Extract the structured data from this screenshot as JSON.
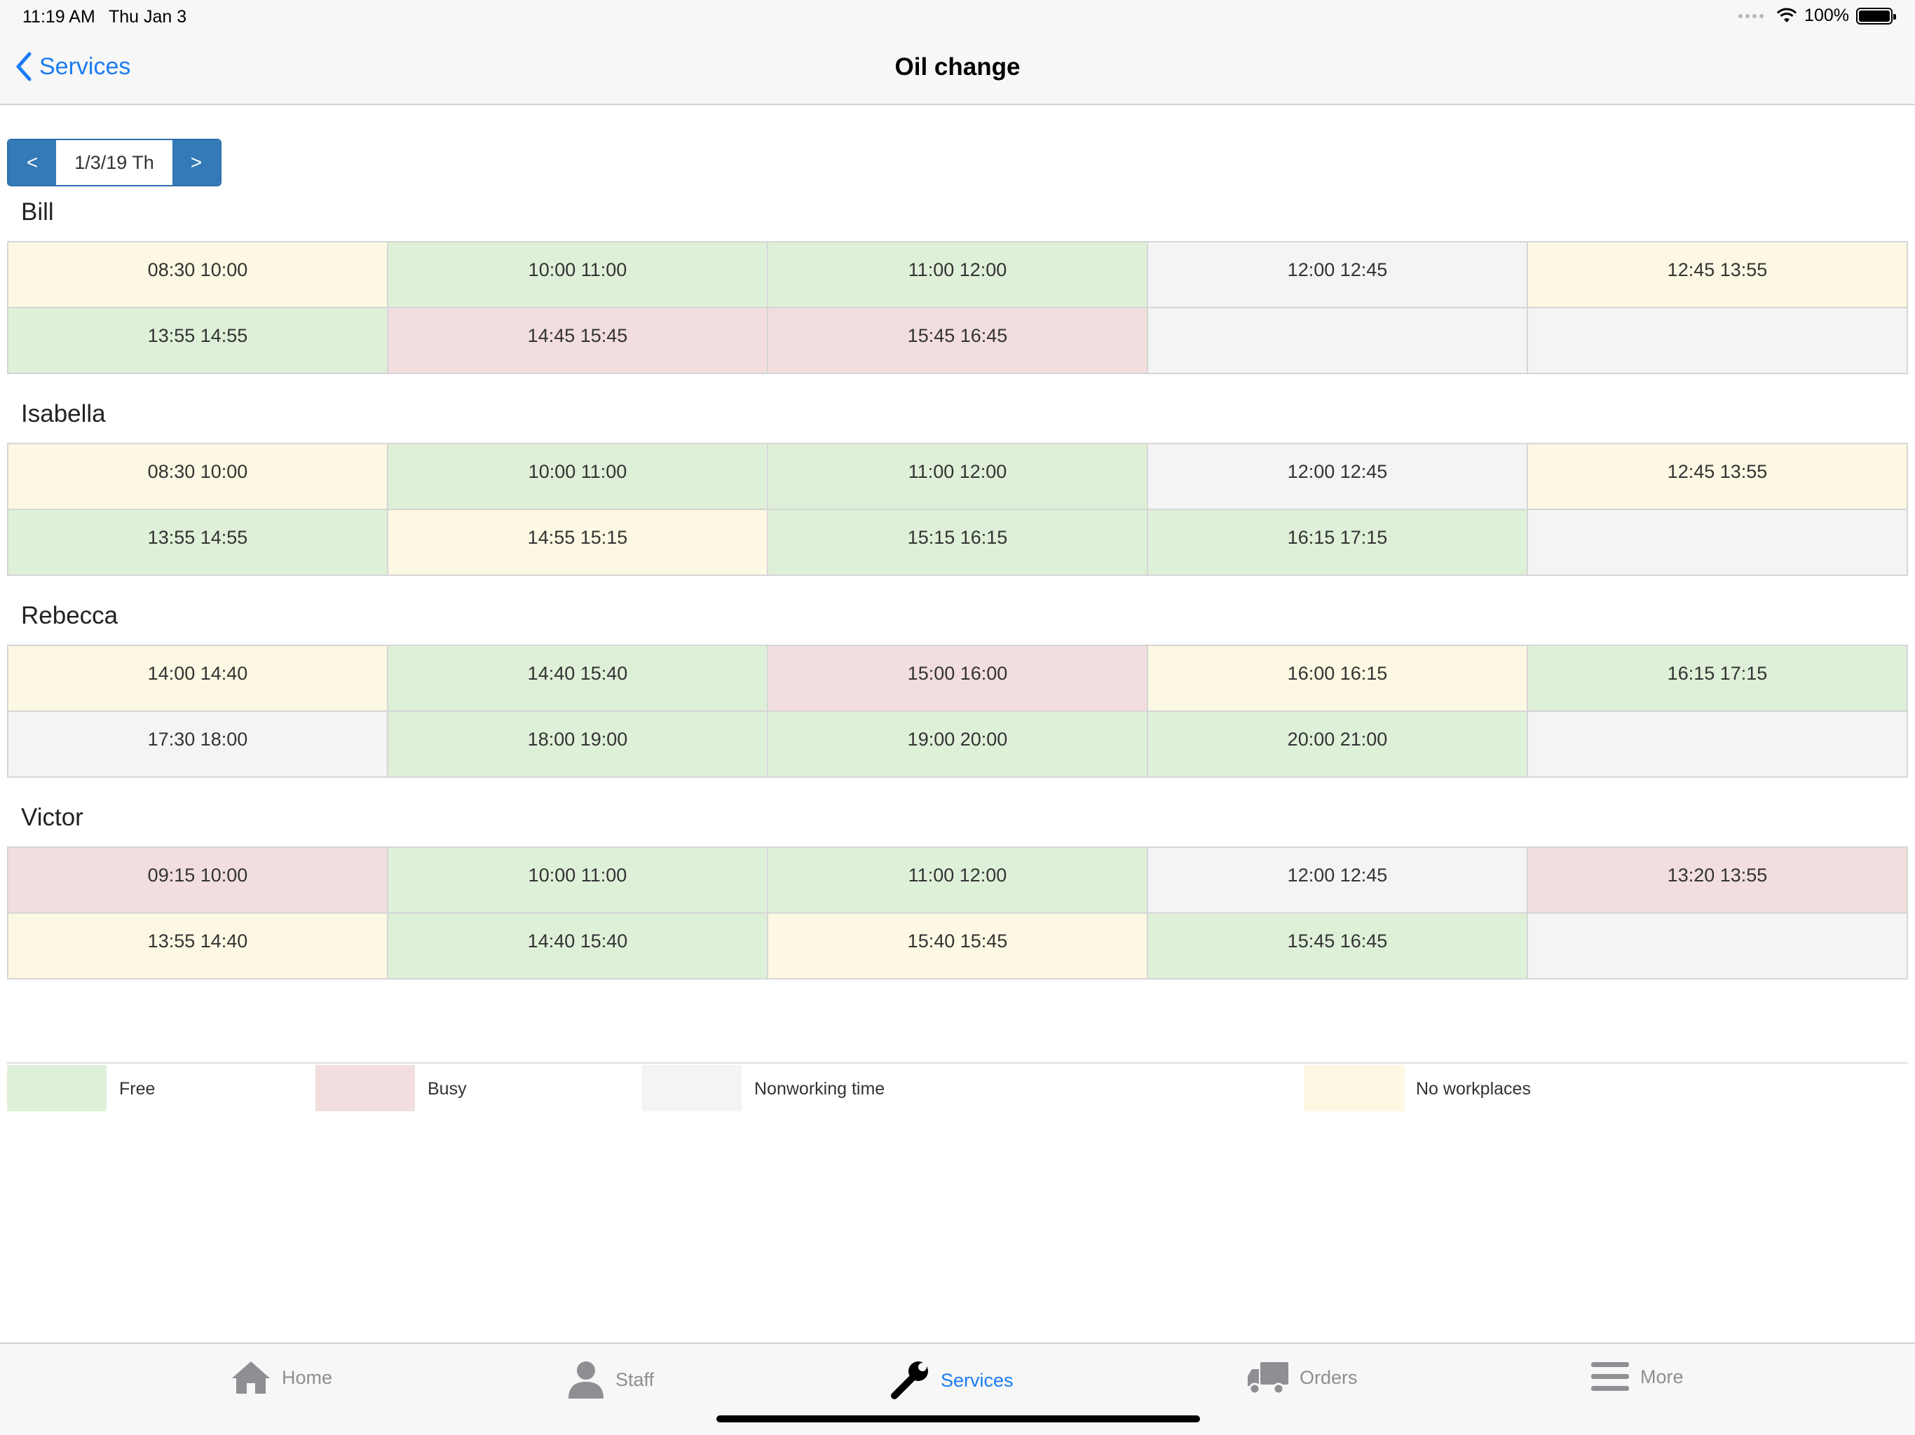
{
  "status_bar": {
    "time": "11:19 AM",
    "date": "Thu Jan 3",
    "battery": "100%"
  },
  "nav": {
    "back_label": "Services",
    "title": "Oil change"
  },
  "date_picker": {
    "prev": "<",
    "value": "1/3/19 Th",
    "next": ">"
  },
  "staff": [
    {
      "name": "Bill",
      "slots": [
        {
          "label": "08:30 10:00",
          "status": "no-workplaces"
        },
        {
          "label": "10:00 11:00",
          "status": "free"
        },
        {
          "label": "11:00 12:00",
          "status": "free"
        },
        {
          "label": "12:00 12:45",
          "status": "nonworking"
        },
        {
          "label": "12:45 13:55",
          "status": "no-workplaces"
        },
        {
          "label": "13:55 14:55",
          "status": "free"
        },
        {
          "label": "14:45 15:45",
          "status": "busy"
        },
        {
          "label": "15:45 16:45",
          "status": "busy"
        },
        {
          "label": "",
          "status": "nonworking"
        },
        {
          "label": "",
          "status": "nonworking"
        }
      ]
    },
    {
      "name": "Isabella",
      "slots": [
        {
          "label": "08:30 10:00",
          "status": "no-workplaces"
        },
        {
          "label": "10:00 11:00",
          "status": "free"
        },
        {
          "label": "11:00 12:00",
          "status": "free"
        },
        {
          "label": "12:00 12:45",
          "status": "nonworking"
        },
        {
          "label": "12:45 13:55",
          "status": "no-workplaces"
        },
        {
          "label": "13:55 14:55",
          "status": "free"
        },
        {
          "label": "14:55 15:15",
          "status": "no-workplaces"
        },
        {
          "label": "15:15 16:15",
          "status": "free"
        },
        {
          "label": "16:15 17:15",
          "status": "free"
        },
        {
          "label": "",
          "status": "nonworking"
        }
      ]
    },
    {
      "name": "Rebecca",
      "slots": [
        {
          "label": "14:00 14:40",
          "status": "no-workplaces"
        },
        {
          "label": "14:40 15:40",
          "status": "free"
        },
        {
          "label": "15:00 16:00",
          "status": "busy"
        },
        {
          "label": "16:00 16:15",
          "status": "no-workplaces"
        },
        {
          "label": "16:15 17:15",
          "status": "free"
        },
        {
          "label": "17:30 18:00",
          "status": "nonworking"
        },
        {
          "label": "18:00 19:00",
          "status": "free"
        },
        {
          "label": "19:00 20:00",
          "status": "free"
        },
        {
          "label": "20:00 21:00",
          "status": "free"
        },
        {
          "label": "",
          "status": "nonworking"
        }
      ]
    },
    {
      "name": "Victor",
      "slots": [
        {
          "label": "09:15 10:00",
          "status": "busy"
        },
        {
          "label": "10:00 11:00",
          "status": "free"
        },
        {
          "label": "11:00 12:00",
          "status": "free"
        },
        {
          "label": "12:00 12:45",
          "status": "nonworking"
        },
        {
          "label": "13:20 13:55",
          "status": "busy"
        },
        {
          "label": "13:55 14:40",
          "status": "no-workplaces"
        },
        {
          "label": "14:40 15:40",
          "status": "free"
        },
        {
          "label": "15:40 15:45",
          "status": "no-workplaces"
        },
        {
          "label": "15:45 16:45",
          "status": "free"
        },
        {
          "label": "",
          "status": "nonworking"
        }
      ]
    }
  ],
  "legend": {
    "free": "Free",
    "busy": "Busy",
    "nonworking": "Nonworking time",
    "no_workplaces": "No workplaces"
  },
  "status_colors": {
    "free": "#dff0d8",
    "busy": "#f2dede",
    "nonworking": "#f4f4f4",
    "no_workplaces": "#fcf8e3"
  },
  "tabs": [
    {
      "label": "Home",
      "icon": "home-icon",
      "active": false
    },
    {
      "label": "Staff",
      "icon": "person-icon",
      "active": false
    },
    {
      "label": "Services",
      "icon": "wrench-icon",
      "active": true
    },
    {
      "label": "Orders",
      "icon": "truck-icon",
      "active": false
    },
    {
      "label": "More",
      "icon": "menu-icon",
      "active": false
    }
  ]
}
